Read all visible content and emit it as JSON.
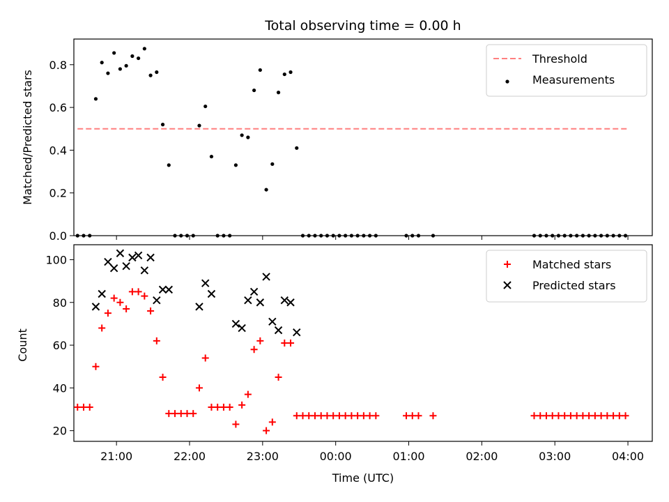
{
  "chart_data": [
    {
      "type": "scatter",
      "title": "Total observing time = 0.00 h",
      "xlabel": "",
      "ylabel": "Matched/Predicted stars",
      "xlim": [
        "20:25",
        "04:20"
      ],
      "ylim": [
        0,
        0.92
      ],
      "y_ticks": [
        "0.0",
        "0.2",
        "0.4",
        "0.6",
        "0.8"
      ],
      "legend_position": "top-right",
      "threshold": {
        "name": "Threshold",
        "value": 0.5,
        "x_range": [
          "20:28",
          "04:00"
        ],
        "color": "#ff7f7f",
        "style": "dashed"
      },
      "series": [
        {
          "name": "Measurements",
          "marker": "dot",
          "color": "#000000",
          "points": [
            [
              "20:28",
              0
            ],
            [
              "20:33",
              0
            ],
            [
              "20:38",
              0
            ],
            [
              "20:43",
              0.64
            ],
            [
              "20:48",
              0.81
            ],
            [
              "20:53",
              0.76
            ],
            [
              "20:58",
              0.855
            ],
            [
              "21:03",
              0.78
            ],
            [
              "21:08",
              0.795
            ],
            [
              "21:13",
              0.84
            ],
            [
              "21:18",
              0.83
            ],
            [
              "21:23",
              0.875
            ],
            [
              "21:28",
              0.75
            ],
            [
              "21:33",
              0.765
            ],
            [
              "21:38",
              0.52
            ],
            [
              "21:43",
              0.33
            ],
            [
              "21:48",
              0
            ],
            [
              "21:53",
              0
            ],
            [
              "21:58",
              0
            ],
            [
              "22:03",
              0
            ],
            [
              "22:08",
              0.515
            ],
            [
              "22:13",
              0.605
            ],
            [
              "22:18",
              0.37
            ],
            [
              "22:23",
              0
            ],
            [
              "22:28",
              0
            ],
            [
              "22:33",
              0
            ],
            [
              "22:38",
              0.33
            ],
            [
              "22:43",
              0.47
            ],
            [
              "22:48",
              0.46
            ],
            [
              "22:53",
              0.68
            ],
            [
              "22:58",
              0.775
            ],
            [
              "23:03",
              0.215
            ],
            [
              "23:08",
              0.335
            ],
            [
              "23:13",
              0.67
            ],
            [
              "23:18",
              0.755
            ],
            [
              "23:23",
              0.765
            ],
            [
              "23:28",
              0.41
            ],
            [
              "23:33",
              0
            ],
            [
              "23:38",
              0
            ],
            [
              "23:43",
              0
            ],
            [
              "23:48",
              0
            ],
            [
              "23:53",
              0
            ],
            [
              "23:58",
              0
            ],
            [
              "00:03",
              0
            ],
            [
              "00:08",
              0
            ],
            [
              "00:13",
              0
            ],
            [
              "00:18",
              0
            ],
            [
              "00:23",
              0
            ],
            [
              "00:28",
              0
            ],
            [
              "00:33",
              0
            ],
            [
              "00:58",
              0
            ],
            [
              "01:03",
              0
            ],
            [
              "01:08",
              0
            ],
            [
              "01:20",
              0
            ],
            [
              "02:43",
              0
            ],
            [
              "02:48",
              0
            ],
            [
              "02:53",
              0
            ],
            [
              "02:58",
              0
            ],
            [
              "03:03",
              0
            ],
            [
              "03:08",
              0
            ],
            [
              "03:13",
              0
            ],
            [
              "03:18",
              0
            ],
            [
              "03:23",
              0
            ],
            [
              "03:28",
              0
            ],
            [
              "03:33",
              0
            ],
            [
              "03:38",
              0
            ],
            [
              "03:43",
              0
            ],
            [
              "03:48",
              0
            ],
            [
              "03:53",
              0
            ],
            [
              "03:58",
              0
            ]
          ]
        }
      ]
    },
    {
      "type": "scatter",
      "title": "",
      "xlabel": "Time (UTC)",
      "ylabel": "Count",
      "xlim": [
        "20:25",
        "04:20"
      ],
      "ylim": [
        15,
        107
      ],
      "x_ticks": [
        "21:00",
        "22:00",
        "23:00",
        "00:00",
        "01:00",
        "02:00",
        "03:00",
        "04:00"
      ],
      "y_ticks": [
        "20",
        "40",
        "60",
        "80",
        "100"
      ],
      "legend_position": "top-right",
      "series": [
        {
          "name": "Matched stars",
          "marker": "plus",
          "color": "#ff0000",
          "points": [
            [
              "20:28",
              31
            ],
            [
              "20:33",
              31
            ],
            [
              "20:38",
              31
            ],
            [
              "20:43",
              50
            ],
            [
              "20:48",
              68
            ],
            [
              "20:53",
              75
            ],
            [
              "20:58",
              82
            ],
            [
              "21:03",
              80
            ],
            [
              "21:08",
              77
            ],
            [
              "21:13",
              85
            ],
            [
              "21:18",
              85
            ],
            [
              "21:23",
              83
            ],
            [
              "21:28",
              76
            ],
            [
              "21:33",
              62
            ],
            [
              "21:38",
              45
            ],
            [
              "21:43",
              28
            ],
            [
              "21:48",
              28
            ],
            [
              "21:53",
              28
            ],
            [
              "21:58",
              28
            ],
            [
              "22:03",
              28
            ],
            [
              "22:08",
              40
            ],
            [
              "22:13",
              54
            ],
            [
              "22:18",
              31
            ],
            [
              "22:23",
              31
            ],
            [
              "22:28",
              31
            ],
            [
              "22:33",
              31
            ],
            [
              "22:38",
              23
            ],
            [
              "22:43",
              32
            ],
            [
              "22:48",
              37
            ],
            [
              "22:53",
              58
            ],
            [
              "22:58",
              62
            ],
            [
              "23:03",
              20
            ],
            [
              "23:08",
              24
            ],
            [
              "23:13",
              45
            ],
            [
              "23:18",
              61
            ],
            [
              "23:23",
              61
            ],
            [
              "23:28",
              27
            ],
            [
              "23:33",
              27
            ],
            [
              "23:38",
              27
            ],
            [
              "23:43",
              27
            ],
            [
              "23:48",
              27
            ],
            [
              "23:53",
              27
            ],
            [
              "23:58",
              27
            ],
            [
              "00:03",
              27
            ],
            [
              "00:08",
              27
            ],
            [
              "00:13",
              27
            ],
            [
              "00:18",
              27
            ],
            [
              "00:23",
              27
            ],
            [
              "00:28",
              27
            ],
            [
              "00:33",
              27
            ],
            [
              "00:58",
              27
            ],
            [
              "01:03",
              27
            ],
            [
              "01:08",
              27
            ],
            [
              "01:20",
              27
            ],
            [
              "02:43",
              27
            ],
            [
              "02:48",
              27
            ],
            [
              "02:53",
              27
            ],
            [
              "02:58",
              27
            ],
            [
              "03:03",
              27
            ],
            [
              "03:08",
              27
            ],
            [
              "03:13",
              27
            ],
            [
              "03:18",
              27
            ],
            [
              "03:23",
              27
            ],
            [
              "03:28",
              27
            ],
            [
              "03:33",
              27
            ],
            [
              "03:38",
              27
            ],
            [
              "03:43",
              27
            ],
            [
              "03:48",
              27
            ],
            [
              "03:53",
              27
            ],
            [
              "03:58",
              27
            ]
          ]
        },
        {
          "name": "Predicted stars",
          "marker": "x",
          "color": "#000000",
          "points": [
            [
              "20:43",
              78
            ],
            [
              "20:48",
              84
            ],
            [
              "20:53",
              99
            ],
            [
              "20:58",
              96
            ],
            [
              "21:03",
              103
            ],
            [
              "21:08",
              97
            ],
            [
              "21:13",
              101
            ],
            [
              "21:18",
              102
            ],
            [
              "21:23",
              95
            ],
            [
              "21:28",
              101
            ],
            [
              "21:33",
              81
            ],
            [
              "21:38",
              86
            ],
            [
              "21:43",
              86
            ],
            [
              "22:08",
              78
            ],
            [
              "22:13",
              89
            ],
            [
              "22:18",
              84
            ],
            [
              "22:38",
              70
            ],
            [
              "22:43",
              68
            ],
            [
              "22:48",
              81
            ],
            [
              "22:53",
              85
            ],
            [
              "22:58",
              80
            ],
            [
              "23:03",
              92
            ],
            [
              "23:08",
              71
            ],
            [
              "23:13",
              67
            ],
            [
              "23:18",
              81
            ],
            [
              "23:23",
              80
            ],
            [
              "23:28",
              66
            ]
          ]
        }
      ]
    }
  ]
}
